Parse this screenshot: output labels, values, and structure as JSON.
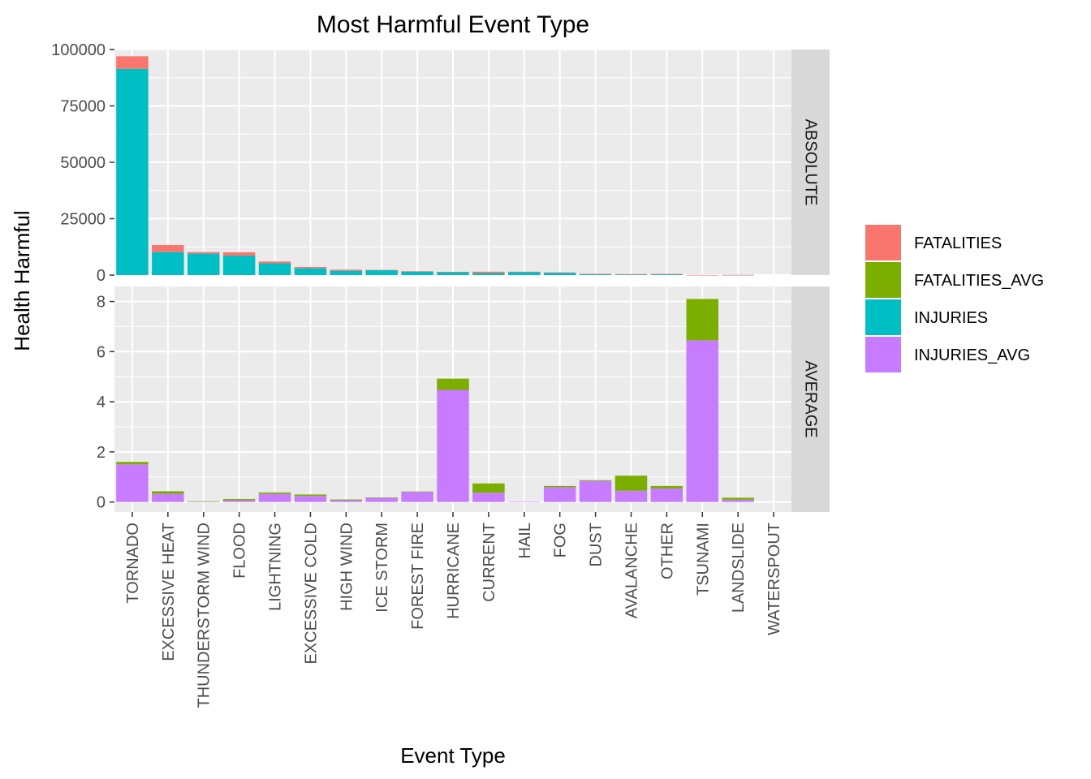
{
  "chart_data": {
    "type": "bar",
    "stacked": true,
    "title": "Most Harmful Event Type",
    "xlabel": "Event Type",
    "ylabel": "Health Harmful",
    "grid": true,
    "legend_position": "right",
    "categories": [
      "TORNADO",
      "EXCESSIVE HEAT",
      "THUNDERSTORM WIND",
      "FLOOD",
      "LIGHTNING",
      "EXCESSIVE COLD",
      "HIGH WIND",
      "ICE STORM",
      "FOREST FIRE",
      "HURRICANE",
      "CURRENT",
      "HAIL",
      "FOG",
      "DUST",
      "AVALANCHE",
      "OTHER",
      "TSUNAMI",
      "LANDSLIDE",
      "WATERSPOUT"
    ],
    "legend": [
      {
        "name": "FATALITIES",
        "color": "#F8766D"
      },
      {
        "name": "FATALITIES_AVG",
        "color": "#7CAE00"
      },
      {
        "name": "INJURIES",
        "color": "#00BFC4"
      },
      {
        "name": "INJURIES_AVG",
        "color": "#C77CFF"
      }
    ],
    "panels": [
      {
        "label": "ABSOLUTE",
        "ylim": [
          0,
          100000
        ],
        "yticks": [
          0,
          25000,
          50000,
          75000,
          100000
        ],
        "ytick_labels": [
          "0",
          "25000",
          "50000",
          "75000",
          "100000"
        ],
        "series": [
          {
            "name": "INJURIES",
            "color": "#00BFC4",
            "values": [
              91400,
              10200,
              9500,
              8600,
              5200,
              3000,
              1900,
              2200,
              1600,
              1300,
              900,
              1400,
              1100,
              500,
              200,
              400,
              0,
              50,
              0
            ]
          },
          {
            "name": "FATALITIES",
            "color": "#F8766D",
            "values": [
              5600,
              3100,
              700,
              1500,
              800,
              600,
              500,
              100,
              100,
              150,
              600,
              100,
              80,
              50,
              230,
              100,
              30,
              40,
              0
            ]
          }
        ]
      },
      {
        "label": "AVERAGE",
        "ylim": [
          -0.4,
          8.6
        ],
        "yticks": [
          0,
          2,
          4,
          6,
          8
        ],
        "ytick_labels": [
          "0",
          "2",
          "4",
          "6",
          "8"
        ],
        "series": [
          {
            "name": "INJURIES_AVG",
            "color": "#C77CFF",
            "values": [
              1.5,
              0.33,
              0.02,
              0.07,
              0.32,
              0.24,
              0.07,
              0.17,
              0.4,
              4.47,
              0.37,
              0.01,
              0.59,
              0.84,
              0.45,
              0.54,
              6.45,
              0.09,
              0.0
            ]
          },
          {
            "name": "FATALITIES_AVG",
            "color": "#7CAE00",
            "values": [
              0.1,
              0.1,
              0.01,
              0.05,
              0.06,
              0.06,
              0.03,
              0.01,
              0.02,
              0.45,
              0.37,
              0.0,
              0.05,
              0.03,
              0.6,
              0.1,
              1.65,
              0.08,
              0.0
            ]
          }
        ]
      }
    ]
  }
}
